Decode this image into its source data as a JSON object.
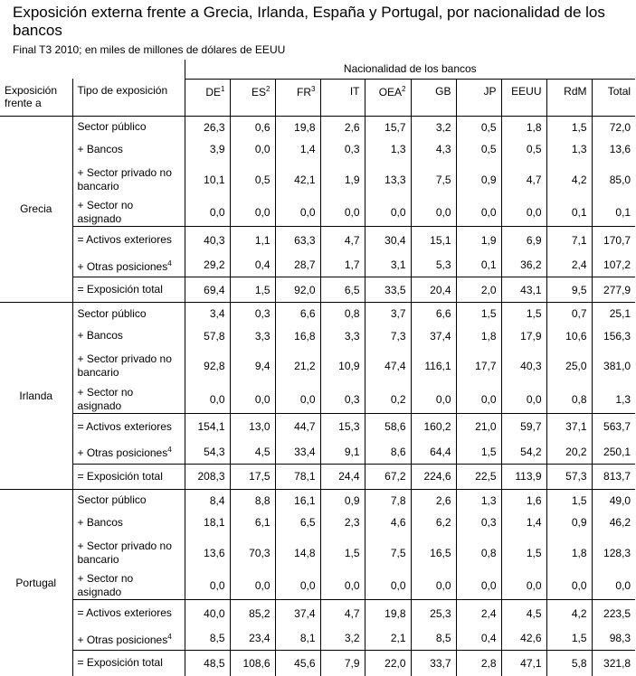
{
  "header": {
    "title": "Exposición externa frente a Grecia, Irlanda, España y Portugal, por nacionalidad de los bancos",
    "subtitle": "Final T3 2010; en miles de millones de dólares de EEUU"
  },
  "table": {
    "group_header": "Nacionalidad de los bancos",
    "columns": [
      {
        "text": "Exposición frente a"
      },
      {
        "text": "Tipo de exposición"
      },
      {
        "text": "DE",
        "sup": "1"
      },
      {
        "text": "ES",
        "sup": "2"
      },
      {
        "text": "FR",
        "sup": "3"
      },
      {
        "text": "IT"
      },
      {
        "text": "OEA",
        "sup": "2"
      },
      {
        "text": "GB"
      },
      {
        "text": "JP"
      },
      {
        "text": "EEUU"
      },
      {
        "text": "RdM"
      },
      {
        "text": "Total"
      }
    ],
    "groups": [
      {
        "name": "Grecia",
        "rows": [
          {
            "label": "Sector público",
            "values": [
              "26,3",
              "0,6",
              "19,8",
              "2,6",
              "15,7",
              "3,2",
              "0,5",
              "1,8",
              "1,5",
              "72,0"
            ]
          },
          {
            "label": "+ Bancos",
            "values": [
              "3,9",
              "0,0",
              "1,4",
              "0,3",
              "1,3",
              "4,3",
              "0,5",
              "0,5",
              "1,3",
              "13,6"
            ]
          },
          {
            "label": "+ Sector privado no bancario",
            "values": [
              "10,1",
              "0,5",
              "42,1",
              "1,9",
              "13,3",
              "7,5",
              "0,9",
              "4,7",
              "4,2",
              "85,0"
            ]
          },
          {
            "label": "+ Sector no asignado",
            "values": [
              "0,0",
              "0,0",
              "0,0",
              "0,0",
              "0,0",
              "0,0",
              "0,0",
              "0,0",
              "0,1",
              "0,1"
            ]
          },
          {
            "label": "= Activos exteriores",
            "values": [
              "40,3",
              "1,1",
              "63,3",
              "4,7",
              "30,4",
              "15,1",
              "1,9",
              "6,9",
              "7,1",
              "170,7"
            ]
          },
          {
            "label": "+ Otras posiciones",
            "sup": "4",
            "values": [
              "29,2",
              "0,4",
              "28,7",
              "1,7",
              "3,1",
              "5,3",
              "0,1",
              "36,2",
              "2,4",
              "107,2"
            ]
          },
          {
            "label": "= Exposición total",
            "values": [
              "69,4",
              "1,5",
              "92,0",
              "6,5",
              "33,5",
              "20,4",
              "2,0",
              "43,1",
              "9,5",
              "277,9"
            ]
          }
        ]
      },
      {
        "name": "Irlanda",
        "rows": [
          {
            "label": "Sector público",
            "values": [
              "3,4",
              "0,3",
              "6,6",
              "0,8",
              "3,7",
              "6,6",
              "1,5",
              "1,5",
              "0,7",
              "25,1"
            ]
          },
          {
            "label": "+ Bancos",
            "values": [
              "57,8",
              "3,3",
              "16,8",
              "3,3",
              "7,3",
              "37,4",
              "1,8",
              "17,9",
              "10,6",
              "156,3"
            ]
          },
          {
            "label": "+ Sector privado no bancario",
            "values": [
              "92,8",
              "9,4",
              "21,2",
              "10,9",
              "47,4",
              "116,1",
              "17,7",
              "40,3",
              "25,0",
              "381,0"
            ]
          },
          {
            "label": "+ Sector no asignado",
            "values": [
              "0,0",
              "0,0",
              "0,0",
              "0,3",
              "0,2",
              "0,0",
              "0,0",
              "0,0",
              "0,8",
              "1,3"
            ]
          },
          {
            "label": "= Activos exteriores",
            "values": [
              "154,1",
              "13,0",
              "44,7",
              "15,3",
              "58,6",
              "160,2",
              "21,0",
              "59,7",
              "37,1",
              "563,7"
            ]
          },
          {
            "label": "+ Otras posiciones",
            "sup": "4",
            "values": [
              "54,3",
              "4,5",
              "33,4",
              "9,1",
              "8,6",
              "64,4",
              "1,5",
              "54,2",
              "20,2",
              "250,1"
            ]
          },
          {
            "label": "= Exposición total",
            "values": [
              "208,3",
              "17,5",
              "78,1",
              "24,4",
              "67,2",
              "224,6",
              "22,5",
              "113,9",
              "57,3",
              "813,7"
            ]
          }
        ]
      },
      {
        "name": "Portugal",
        "rows": [
          {
            "label": "Sector público",
            "values": [
              "8,4",
              "8,8",
              "16,1",
              "0,9",
              "7,8",
              "2,6",
              "1,3",
              "1,6",
              "1,5",
              "49,0"
            ]
          },
          {
            "label": "+ Bancos",
            "values": [
              "18,1",
              "6,1",
              "6,5",
              "2,3",
              "4,6",
              "6,2",
              "0,3",
              "1,4",
              "0,9",
              "46,2"
            ]
          },
          {
            "label": "+ Sector privado no bancario",
            "values": [
              "13,6",
              "70,3",
              "14,8",
              "1,5",
              "7,5",
              "16,5",
              "0,8",
              "1,5",
              "1,8",
              "128,3"
            ]
          },
          {
            "label": "+ Sector no asignado",
            "values": [
              "0,0",
              "0,0",
              "0,0",
              "0,0",
              "0,0",
              "0,0",
              "0,0",
              "0,0",
              "0,0",
              "0,0"
            ]
          },
          {
            "label": "= Activos exteriores",
            "values": [
              "40,0",
              "85,2",
              "37,4",
              "4,7",
              "19,8",
              "25,3",
              "2,4",
              "4,5",
              "4,2",
              "223,5"
            ]
          },
          {
            "label": "+ Otras posiciones",
            "sup": "4",
            "values": [
              "8,5",
              "23,4",
              "8,1",
              "3,2",
              "2,1",
              "8,5",
              "0,4",
              "42,6",
              "1,5",
              "98,3"
            ]
          },
          {
            "label": "= Exposición total",
            "values": [
              "48,5",
              "108,6",
              "45,6",
              "7,9",
              "22,0",
              "33,7",
              "2,8",
              "47,1",
              "5,8",
              "321,8"
            ]
          }
        ]
      }
    ]
  }
}
